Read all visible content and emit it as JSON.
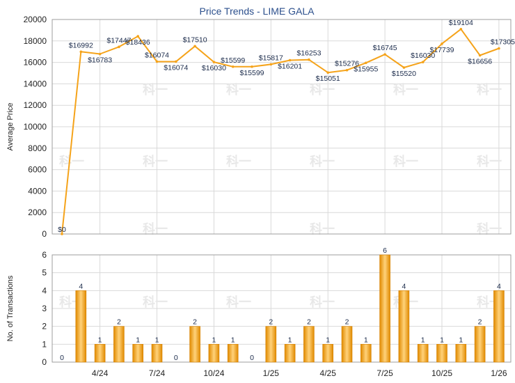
{
  "chart_data": [
    {
      "type": "line",
      "title": "Price Trends - LIME GALA",
      "ylabel": "Average Price",
      "ylim": [
        0,
        20000
      ],
      "yticks": [
        "0",
        "2000",
        "4000",
        "6000",
        "8000",
        "10000",
        "12000",
        "14000",
        "16000",
        "18000",
        "20000"
      ],
      "values": [
        0,
        16992,
        16783,
        17447,
        18436,
        16074,
        16074,
        17510,
        16030,
        15599,
        15599,
        15817,
        16201,
        16253,
        15051,
        15276,
        15955,
        16745,
        15520,
        16030,
        17739,
        19104,
        16656,
        17305
      ],
      "labels": [
        "$0",
        "$16992",
        "$16783",
        "$17447",
        "$18436",
        "$16074",
        "$16074",
        "$17510",
        "$16030",
        "$15599",
        "$15599",
        "$15817",
        "$16201",
        "$16253",
        "$15051",
        "$15276",
        "$15955",
        "$16745",
        "$15520",
        "$16030",
        "$17739",
        "$19104",
        "$16656",
        "$17305"
      ],
      "color": "#f5a31a"
    },
    {
      "type": "bar",
      "ylabel": "No. of Transactions",
      "ylim": [
        0,
        6
      ],
      "yticks": [
        "0",
        "1",
        "2",
        "3",
        "4",
        "5",
        "6"
      ],
      "values": [
        0,
        4,
        1,
        2,
        1,
        1,
        0,
        2,
        1,
        1,
        0,
        2,
        1,
        2,
        1,
        2,
        1,
        6,
        4,
        1,
        1,
        1,
        2,
        4
      ],
      "labels": [
        "0",
        "4",
        "1",
        "2",
        "1",
        "1",
        "0",
        "2",
        "1",
        "1",
        "0",
        "2",
        "1",
        "2",
        "1",
        "2",
        "1",
        "6",
        "4",
        "1",
        "1",
        "1",
        "2",
        "4"
      ],
      "xtick_labels": [
        "4/24",
        "7/24",
        "10/24",
        "1/25",
        "4/25",
        "7/25",
        "10/25",
        "1/26"
      ],
      "xtick_index": [
        2,
        5,
        8,
        11,
        14,
        17,
        20,
        23
      ],
      "color": "#f5a31a"
    }
  ],
  "watermark": "科一"
}
